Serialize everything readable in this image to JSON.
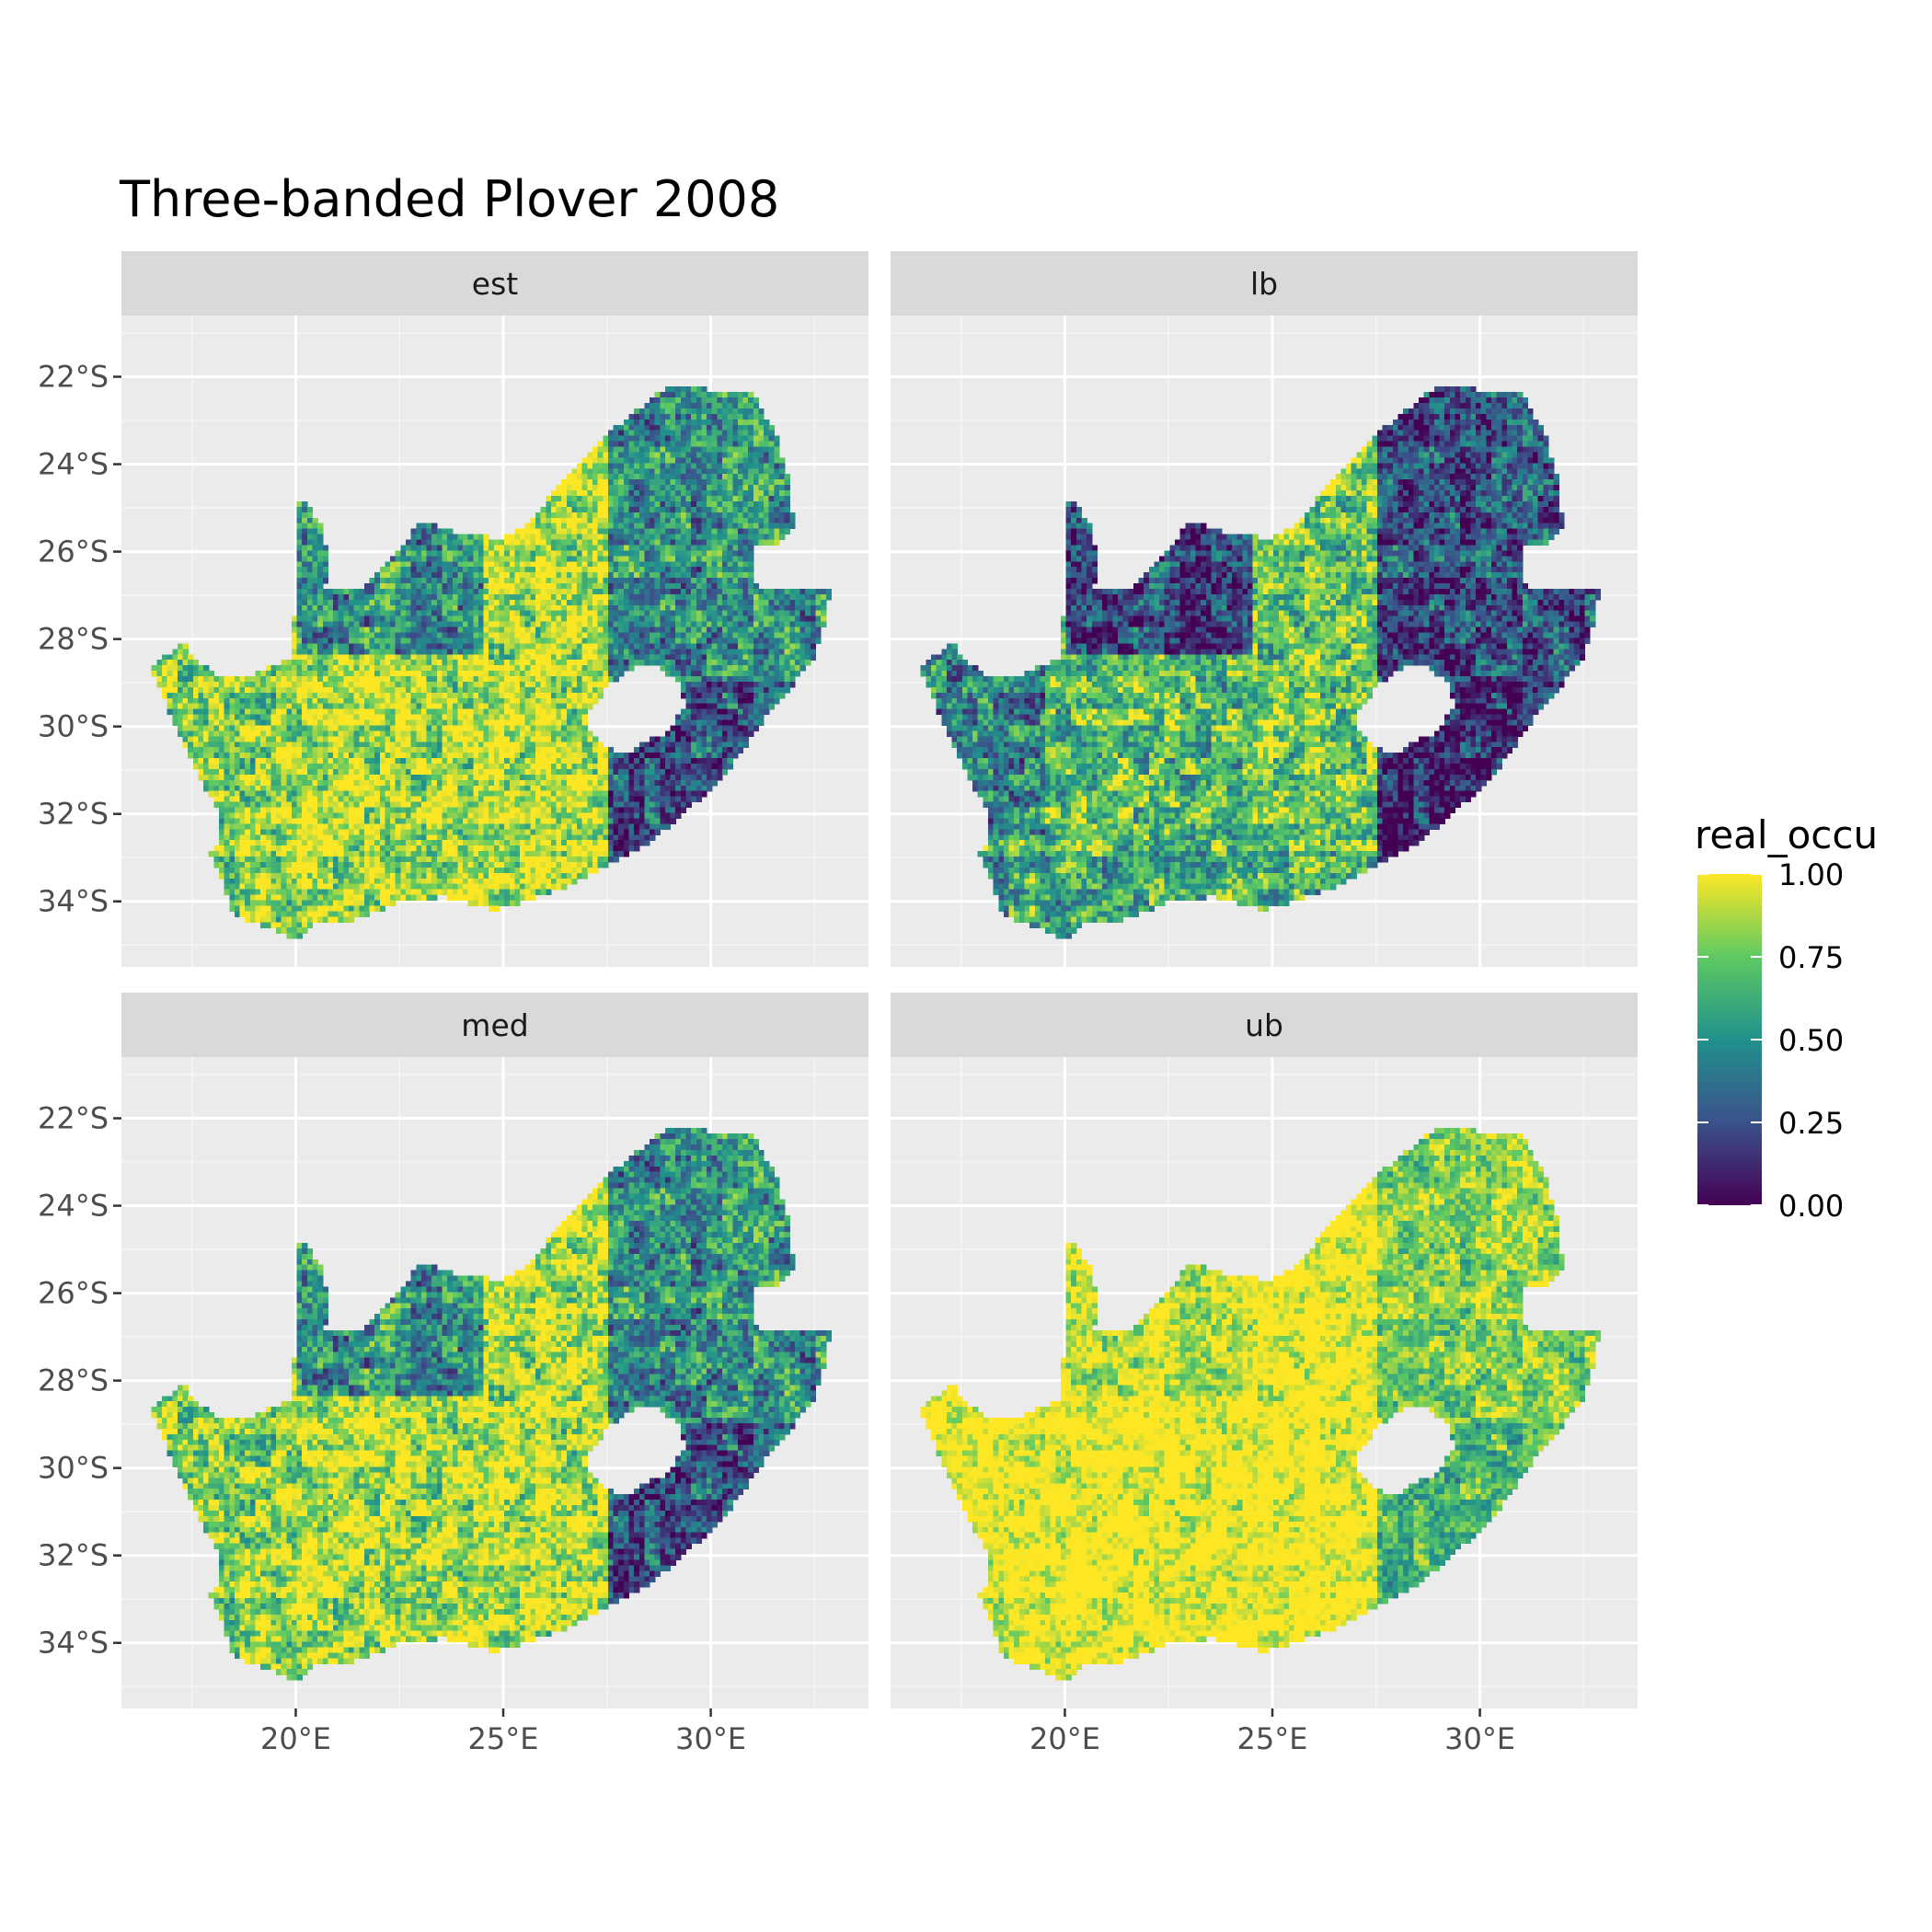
{
  "title": "Three-banded Plover 2008",
  "facets": [
    {
      "key": "est",
      "label": "est"
    },
    {
      "key": "lb",
      "label": "lb"
    },
    {
      "key": "med",
      "label": "med"
    },
    {
      "key": "ub",
      "label": "ub"
    }
  ],
  "x_ticks": [
    {
      "value": 20,
      "label": "20°E"
    },
    {
      "value": 25,
      "label": "25°E"
    },
    {
      "value": 30,
      "label": "30°E"
    }
  ],
  "y_ticks": [
    {
      "value": -22,
      "label": "22°S"
    },
    {
      "value": -24,
      "label": "24°S"
    },
    {
      "value": -26,
      "label": "26°S"
    },
    {
      "value": -28,
      "label": "28°S"
    },
    {
      "value": -30,
      "label": "30°S"
    },
    {
      "value": -32,
      "label": "32°S"
    },
    {
      "value": -34,
      "label": "34°S"
    }
  ],
  "legend": {
    "title": "real_occu",
    "breaks": [
      {
        "value": 1.0,
        "label": "1.00"
      },
      {
        "value": 0.75,
        "label": "0.75"
      },
      {
        "value": 0.5,
        "label": "0.50"
      },
      {
        "value": 0.25,
        "label": "0.25"
      },
      {
        "value": 0.0,
        "label": "0.00"
      }
    ],
    "colors": [
      "#440154",
      "#3b528b",
      "#21918c",
      "#5ec962",
      "#fde725"
    ]
  },
  "chart_data": {
    "type": "heatmap",
    "title": "Three-banded Plover 2008",
    "fill_variable": "real_occu",
    "fill_range": [
      0,
      1
    ],
    "color_scale": "viridis",
    "xlim": [
      15.8,
      33.8
    ],
    "ylim": [
      -35.5,
      -20.6
    ],
    "panels": [
      "est",
      "lb",
      "med",
      "ub"
    ],
    "regions_mean_occupancy": {
      "est": {
        "west_coast": 0.8,
        "kalahari_north": 0.5,
        "central_karoo": 0.9,
        "free_state": 0.9,
        "kwazulu_natal_east": 0.25,
        "north_east": 0.5,
        "south_coast": 0.85
      },
      "lb": {
        "west_coast": 0.45,
        "kalahari_north": 0.2,
        "central_karoo": 0.7,
        "free_state": 0.75,
        "kwazulu_natal_east": 0.1,
        "north_east": 0.25,
        "south_coast": 0.6
      },
      "med": {
        "west_coast": 0.8,
        "kalahari_north": 0.5,
        "central_karoo": 0.9,
        "free_state": 0.9,
        "kwazulu_natal_east": 0.25,
        "north_east": 0.5,
        "south_coast": 0.85
      },
      "ub": {
        "west_coast": 0.97,
        "kalahari_north": 0.85,
        "central_karoo": 0.98,
        "free_state": 0.97,
        "kwazulu_natal_east": 0.6,
        "north_east": 0.75,
        "south_coast": 0.95
      }
    }
  }
}
